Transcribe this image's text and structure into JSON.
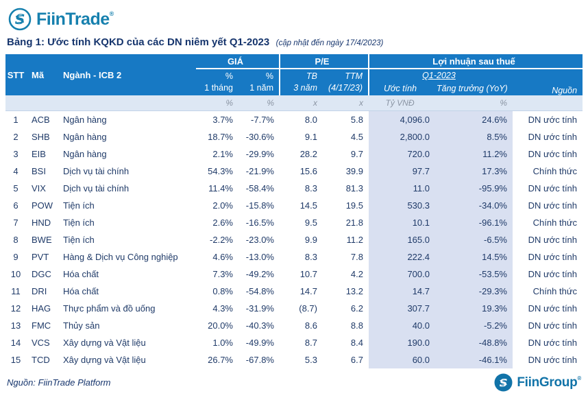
{
  "logo": {
    "brand": "FiinTrade",
    "reg": "®"
  },
  "title": {
    "main": "Bảng 1: Ước tính KQKD của các DN niêm yết Q1-2023",
    "note": "(cập nhật đến ngày 17/4/2023)"
  },
  "colors": {
    "header_blue": "#1779c4",
    "units_bg": "#dde7f4",
    "highlight": "#d9e0f1",
    "navy": "#1f3a68",
    "title_navy": "#16356d",
    "green": "#2ebd85",
    "red": "#f23645",
    "dark_red": "#c00000",
    "teal": "#1680ae",
    "teal2": "#1173a8"
  },
  "table": {
    "header": {
      "stt": "STT",
      "ma": "Mã",
      "nganh": "Ngành - ICB 2",
      "gia": "GIÁ",
      "pe": "P/E",
      "lnst": "Lợi nhuận sau thuế",
      "m1_a": "%",
      "m1_b": "1 tháng",
      "y1_a": "%",
      "y1_b": "1 năm",
      "tb_a": "TB",
      "tb_b": "3 năm",
      "ttm_a": "TTM",
      "ttm_b": "(4/17/23)",
      "q": "Q1-2023",
      "uoc": "Ước tính",
      "yoy": "Tăng trưởng (YoY)",
      "nguon": "Nguồn"
    },
    "units": {
      "m1": "%",
      "y1": "%",
      "tb": "x",
      "ttm": "x",
      "uoc": "Tỷ VNĐ",
      "yoy": "%"
    },
    "rows": [
      {
        "stt": "1",
        "ma": "ACB",
        "nganh": "Ngân hàng",
        "m1": "3.7%",
        "y1": "-7.7%",
        "pe_tb": "8.0",
        "pe_ttm": "5.8",
        "uoc_tinh": "4,096.0",
        "yoy": "24.6%",
        "nguon": "DN ước tính"
      },
      {
        "stt": "2",
        "ma": "SHB",
        "nganh": "Ngân hàng",
        "m1": "18.7%",
        "y1": "-30.6%",
        "pe_tb": "9.1",
        "pe_ttm": "4.5",
        "uoc_tinh": "2,800.0",
        "yoy": "8.5%",
        "nguon": "DN ước tính"
      },
      {
        "stt": "3",
        "ma": "EIB",
        "nganh": "Ngân hàng",
        "m1": "2.1%",
        "y1": "-29.9%",
        "pe_tb": "28.2",
        "pe_ttm": "9.7",
        "uoc_tinh": "720.0",
        "yoy": "11.2%",
        "nguon": "DN ước tính"
      },
      {
        "stt": "4",
        "ma": "BSI",
        "nganh": "Dịch vụ tài chính",
        "m1": "54.3%",
        "y1": "-21.9%",
        "pe_tb": "15.6",
        "pe_ttm": "39.9",
        "uoc_tinh": "97.7",
        "yoy": "17.3%",
        "nguon": "Chính thức"
      },
      {
        "stt": "5",
        "ma": "VIX",
        "nganh": "Dịch vụ tài chính",
        "m1": "11.4%",
        "y1": "-58.4%",
        "pe_tb": "8.3",
        "pe_ttm": "81.3",
        "uoc_tinh": "11.0",
        "yoy": "-95.9%",
        "nguon": "DN ước tính"
      },
      {
        "stt": "6",
        "ma": "POW",
        "nganh": "Tiện ích",
        "m1": "2.0%",
        "y1": "-15.8%",
        "pe_tb": "14.5",
        "pe_ttm": "19.5",
        "uoc_tinh": "530.3",
        "yoy": "-34.0%",
        "nguon": "DN ước tính"
      },
      {
        "stt": "7",
        "ma": "HND",
        "nganh": "Tiện ích",
        "m1": "2.6%",
        "y1": "-16.5%",
        "pe_tb": "9.5",
        "pe_ttm": "21.8",
        "uoc_tinh": "10.1",
        "yoy": "-96.1%",
        "nguon": "Chính thức"
      },
      {
        "stt": "8",
        "ma": "BWE",
        "nganh": "Tiện ích",
        "m1": "-2.2%",
        "y1": "-23.0%",
        "pe_tb": "9.9",
        "pe_ttm": "11.2",
        "uoc_tinh": "165.0",
        "yoy": "-6.5%",
        "nguon": "DN ước tính"
      },
      {
        "stt": "9",
        "ma": "PVT",
        "nganh": "Hàng & Dịch vụ Công nghiệp",
        "m1": "4.6%",
        "y1": "-13.0%",
        "pe_tb": "8.3",
        "pe_ttm": "7.8",
        "uoc_tinh": "222.4",
        "yoy": "14.5%",
        "nguon": "DN ước tính"
      },
      {
        "stt": "10",
        "ma": "DGC",
        "nganh": "Hóa chất",
        "m1": "7.3%",
        "y1": "-49.2%",
        "pe_tb": "10.7",
        "pe_ttm": "4.2",
        "uoc_tinh": "700.0",
        "yoy": "-53.5%",
        "nguon": "DN ước tính"
      },
      {
        "stt": "11",
        "ma": "DRI",
        "nganh": "Hóa chất",
        "m1": "0.8%",
        "y1": "-54.8%",
        "pe_tb": "14.7",
        "pe_ttm": "13.2",
        "uoc_tinh": "14.7",
        "yoy": "-29.3%",
        "nguon": "Chính thức"
      },
      {
        "stt": "12",
        "ma": "HAG",
        "nganh": "Thực phẩm và đồ uống",
        "m1": "4.3%",
        "y1": "-31.9%",
        "pe_tb": "(8.7)",
        "pe_ttm": "6.2",
        "uoc_tinh": "307.7",
        "yoy": "19.3%",
        "nguon": "DN ước tính"
      },
      {
        "stt": "13",
        "ma": "FMC",
        "nganh": "Thủy sản",
        "m1": "20.0%",
        "y1": "-40.3%",
        "pe_tb": "8.6",
        "pe_ttm": "8.8",
        "uoc_tinh": "40.0",
        "yoy": "-5.2%",
        "nguon": "DN ước tính"
      },
      {
        "stt": "14",
        "ma": "VCS",
        "nganh": "Xây dựng và Vật liệu",
        "m1": "1.0%",
        "y1": "-49.9%",
        "pe_tb": "8.7",
        "pe_ttm": "8.4",
        "uoc_tinh": "190.0",
        "yoy": "-48.8%",
        "nguon": "DN ước tính"
      },
      {
        "stt": "15",
        "ma": "TCD",
        "nganh": "Xây dựng và Vật liệu",
        "m1": "26.7%",
        "y1": "-67.8%",
        "pe_tb": "5.3",
        "pe_ttm": "6.7",
        "uoc_tinh": "60.0",
        "yoy": "-46.1%",
        "nguon": "DN ước tính"
      }
    ]
  },
  "footer": {
    "source": "Nguồn: FiinTrade Platform",
    "brand": "FiinGroup",
    "reg": "®"
  }
}
